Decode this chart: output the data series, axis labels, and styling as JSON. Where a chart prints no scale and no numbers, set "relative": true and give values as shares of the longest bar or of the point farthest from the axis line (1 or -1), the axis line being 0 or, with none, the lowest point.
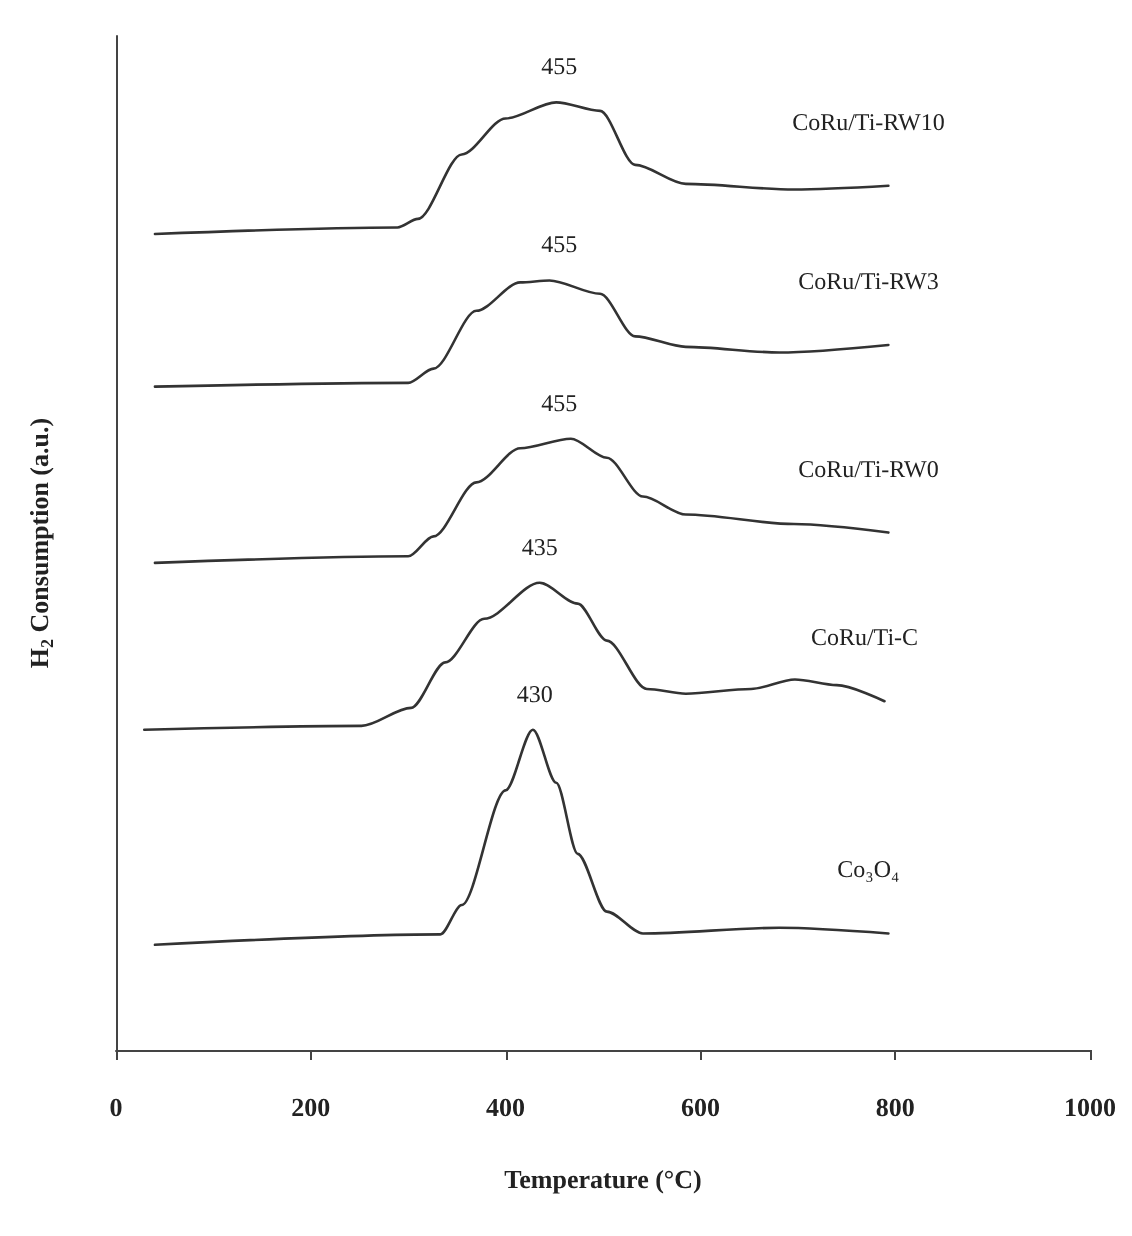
{
  "chart_data": {
    "type": "line",
    "relative": true,
    "xlabel": "Temperature (°C)",
    "ylabel": "H$_{2}$ Consumption (a.u.)",
    "xlim": [
      0,
      1000
    ],
    "xticks": [
      0,
      200,
      400,
      600,
      800,
      1000
    ],
    "grid": false,
    "legend": false,
    "marker": "none",
    "line_style": "solid",
    "series": [
      {
        "name": "CoRu/Ti-RW10",
        "color": "#333333",
        "x": [
          40,
          289,
          310,
          355,
          400,
          452,
          497,
          533,
          585,
          696,
          793
        ],
        "values": [
          0.861,
          0.868,
          0.877,
          0.945,
          0.983,
          1.0,
          0.991,
          0.934,
          0.914,
          0.908,
          0.912
        ]
      },
      {
        "name": "CoRu/Ti-RW3",
        "color": "#333333",
        "x": [
          40,
          300,
          326,
          370,
          415,
          445,
          497,
          533,
          585,
          681,
          793
        ],
        "values": [
          0.7,
          0.704,
          0.719,
          0.78,
          0.81,
          0.812,
          0.798,
          0.753,
          0.742,
          0.736,
          0.744
        ]
      },
      {
        "name": "CoRu/Ti-RW0",
        "color": "#333333",
        "x": [
          40,
          300,
          326,
          370,
          415,
          467,
          504,
          541,
          585,
          696,
          793
        ],
        "values": [
          0.514,
          0.521,
          0.542,
          0.599,
          0.635,
          0.645,
          0.625,
          0.584,
          0.565,
          0.555,
          0.546
        ]
      },
      {
        "name": "CoRu/Ti-C",
        "color": "#333333",
        "x": [
          29,
          252,
          303,
          338,
          378,
          435,
          474,
          504,
          545,
          585,
          652,
          697,
          740,
          789
        ],
        "values": [
          0.338,
          0.342,
          0.361,
          0.409,
          0.455,
          0.493,
          0.471,
          0.432,
          0.381,
          0.376,
          0.381,
          0.391,
          0.385,
          0.368
        ]
      },
      {
        "name": "Co₃O₄",
        "color": "#333333",
        "x": [
          40,
          333,
          355,
          400,
          428,
          452,
          474,
          504,
          541,
          681,
          793
        ],
        "values": [
          0.111,
          0.122,
          0.153,
          0.274,
          0.338,
          0.282,
          0.207,
          0.146,
          0.123,
          0.129,
          0.123
        ]
      }
    ],
    "annotations": [
      {
        "text": "455",
        "x": 455,
        "y": 1.0
      },
      {
        "text": "455",
        "x": 455,
        "y": 0.812
      },
      {
        "text": "455",
        "x": 455,
        "y": 0.645
      },
      {
        "text": "435",
        "x": 435,
        "y": 0.493
      },
      {
        "text": "430",
        "x": 430,
        "y": 0.338
      }
    ]
  }
}
